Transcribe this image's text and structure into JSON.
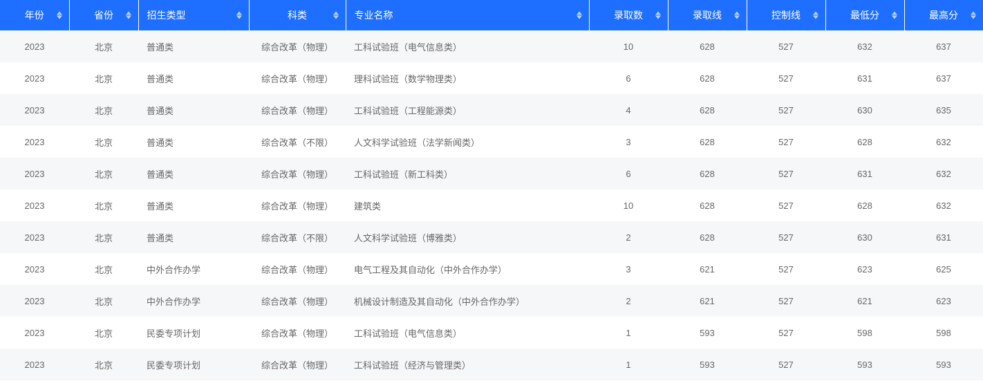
{
  "table": {
    "header_bg": "#1e6fff",
    "header_fg": "#ffffff",
    "row_odd_bg": "#f6f7f9",
    "row_even_bg": "#ffffff",
    "cell_color": "#666666",
    "sort_arrow_color": "#b8d2ff",
    "columns": [
      {
        "key": "year",
        "label": "年份",
        "align": "center",
        "sortable": true
      },
      {
        "key": "province",
        "label": "省份",
        "align": "center",
        "sortable": true
      },
      {
        "key": "type",
        "label": "招生类型",
        "align": "left",
        "sortable": true
      },
      {
        "key": "subject",
        "label": "科类",
        "align": "center",
        "sortable": true
      },
      {
        "key": "major",
        "label": "专业名称",
        "align": "left",
        "sortable": true
      },
      {
        "key": "count",
        "label": "录取数",
        "align": "center",
        "sortable": true
      },
      {
        "key": "admit",
        "label": "录取线",
        "align": "center",
        "sortable": true
      },
      {
        "key": "control",
        "label": "控制线",
        "align": "center",
        "sortable": true
      },
      {
        "key": "min",
        "label": "最低分",
        "align": "center",
        "sortable": true
      },
      {
        "key": "max",
        "label": "最高分",
        "align": "center",
        "sortable": true
      }
    ],
    "rows": [
      {
        "year": "2023",
        "province": "北京",
        "type": "普通类",
        "subject": "综合改革（物理）",
        "major": "工科试验班（电气信息类）",
        "count": "10",
        "admit": "628",
        "control": "527",
        "min": "632",
        "max": "637"
      },
      {
        "year": "2023",
        "province": "北京",
        "type": "普通类",
        "subject": "综合改革（物理）",
        "major": "理科试验班（数学物理类）",
        "count": "6",
        "admit": "628",
        "control": "527",
        "min": "631",
        "max": "637"
      },
      {
        "year": "2023",
        "province": "北京",
        "type": "普通类",
        "subject": "综合改革（物理）",
        "major": "工科试验班（工程能源类）",
        "count": "4",
        "admit": "628",
        "control": "527",
        "min": "630",
        "max": "635"
      },
      {
        "year": "2023",
        "province": "北京",
        "type": "普通类",
        "subject": "综合改革（不限）",
        "major": "人文科学试验班（法学新闻类）",
        "count": "3",
        "admit": "628",
        "control": "527",
        "min": "628",
        "max": "632"
      },
      {
        "year": "2023",
        "province": "北京",
        "type": "普通类",
        "subject": "综合改革（物理）",
        "major": "工科试验班（新工科类）",
        "count": "6",
        "admit": "628",
        "control": "527",
        "min": "631",
        "max": "632"
      },
      {
        "year": "2023",
        "province": "北京",
        "type": "普通类",
        "subject": "综合改革（物理）",
        "major": "建筑类",
        "count": "10",
        "admit": "628",
        "control": "527",
        "min": "628",
        "max": "632"
      },
      {
        "year": "2023",
        "province": "北京",
        "type": "普通类",
        "subject": "综合改革（不限）",
        "major": "人文科学试验班（博雅类）",
        "count": "2",
        "admit": "628",
        "control": "527",
        "min": "630",
        "max": "631"
      },
      {
        "year": "2023",
        "province": "北京",
        "type": "中外合作办学",
        "subject": "综合改革（物理）",
        "major": "电气工程及其自动化（中外合作办学）",
        "count": "3",
        "admit": "621",
        "control": "527",
        "min": "623",
        "max": "625"
      },
      {
        "year": "2023",
        "province": "北京",
        "type": "中外合作办学",
        "subject": "综合改革（物理）",
        "major": "机械设计制造及其自动化（中外合作办学）",
        "count": "2",
        "admit": "621",
        "control": "527",
        "min": "621",
        "max": "623"
      },
      {
        "year": "2023",
        "province": "北京",
        "type": "民委专项计划",
        "subject": "综合改革（物理）",
        "major": "工科试验班（电气信息类）",
        "count": "1",
        "admit": "593",
        "control": "527",
        "min": "598",
        "max": "598"
      },
      {
        "year": "2023",
        "province": "北京",
        "type": "民委专项计划",
        "subject": "综合改革（物理）",
        "major": "工科试验班（经济与管理类）",
        "count": "1",
        "admit": "593",
        "control": "527",
        "min": "593",
        "max": "593"
      }
    ]
  }
}
